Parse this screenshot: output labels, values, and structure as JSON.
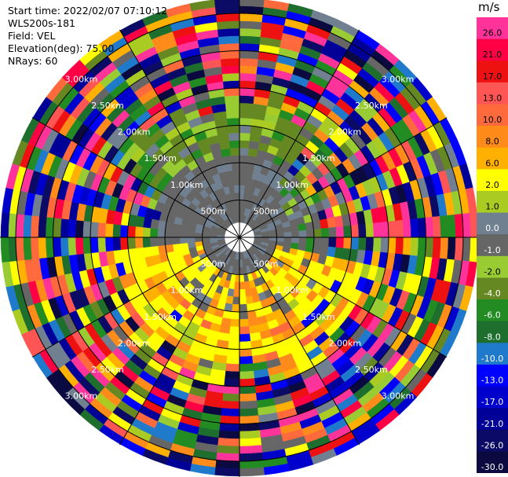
{
  "header": {
    "start_time": "Start time: 2022/02/07 07:10:12",
    "site": "WLS200s-181",
    "field": "Field: VEL",
    "elevation": "Elevation(deg): 75.00",
    "nrays": "NRays: 60"
  },
  "colorbar": {
    "unit": "m/s",
    "bins": [
      {
        "label": "26.0",
        "color": "#ff3399"
      },
      {
        "label": "21.0",
        "color": "#ff0044"
      },
      {
        "label": "17.0",
        "color": "#ee1111"
      },
      {
        "label": "13.0",
        "color": "#ff5555"
      },
      {
        "label": "10.0",
        "color": "#ff6a3d"
      },
      {
        "label": "8.0",
        "color": "#ff8c1a"
      },
      {
        "label": "6.0",
        "color": "#ffb000"
      },
      {
        "label": "2.0",
        "color": "#ffff00"
      },
      {
        "label": "1.0",
        "color": "#aacc22"
      },
      {
        "label": "0.0",
        "color": "#708090"
      },
      {
        "label": "-1.0",
        "color": "#666666"
      },
      {
        "label": "-2.0",
        "color": "#99cc33"
      },
      {
        "label": "-4.0",
        "color": "#668822"
      },
      {
        "label": "-6.0",
        "color": "#228b22"
      },
      {
        "label": "-8.0",
        "color": "#1e6e2e"
      },
      {
        "label": "-10.0",
        "color": "#1f7acc"
      },
      {
        "label": "-13.0",
        "color": "#0000ff"
      },
      {
        "label": "-17.0",
        "color": "#0000cc"
      },
      {
        "label": "-21.0",
        "color": "#000099"
      },
      {
        "label": "-26.0",
        "color": "#0b0b66"
      },
      {
        "label": "-30.0",
        "color": "#0a0a40"
      }
    ]
  },
  "chart_data": {
    "type": "heatmap",
    "projection": "polar (PPI)",
    "field": "VEL",
    "units": "m/s",
    "range_rings": [
      "500m",
      "1.00km",
      "1.50km",
      "2.00km",
      "2.50km",
      "3.00km"
    ],
    "max_range_km": 3.2,
    "gate_spacing_km": 0.1,
    "n_rays": 60,
    "note_inner": "Mostly -1 to 0 m/s (gray) within ~1.1 km; yellow/orange (2 to 8 m/s) sector in south; olive/green (-2 to -6 m/s) sector in north; outer gates noisy across full color range."
  }
}
